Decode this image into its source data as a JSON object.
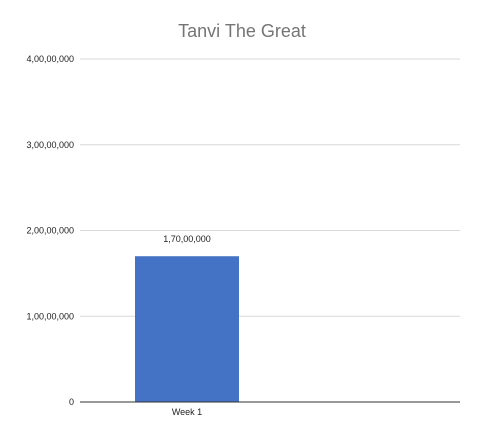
{
  "chart_data": {
    "type": "bar",
    "title": "Tanvi The Great",
    "categories": [
      "Week 1"
    ],
    "values": [
      17000000
    ],
    "data_labels": [
      "1,70,00,000"
    ],
    "ylim": [
      0,
      40000000
    ],
    "yticks": [
      {
        "value": 0,
        "label": "0"
      },
      {
        "value": 10000000,
        "label": "1,00,00,000"
      },
      {
        "value": 20000000,
        "label": "2,00,00,000"
      },
      {
        "value": 30000000,
        "label": "3,00,00,000"
      },
      {
        "value": 40000000,
        "label": "4,00,00,000"
      }
    ],
    "grid": true,
    "legend": "none",
    "colors": {
      "bar": "#4472c4",
      "title": "#757575",
      "grid": "#d9d9d9"
    }
  }
}
